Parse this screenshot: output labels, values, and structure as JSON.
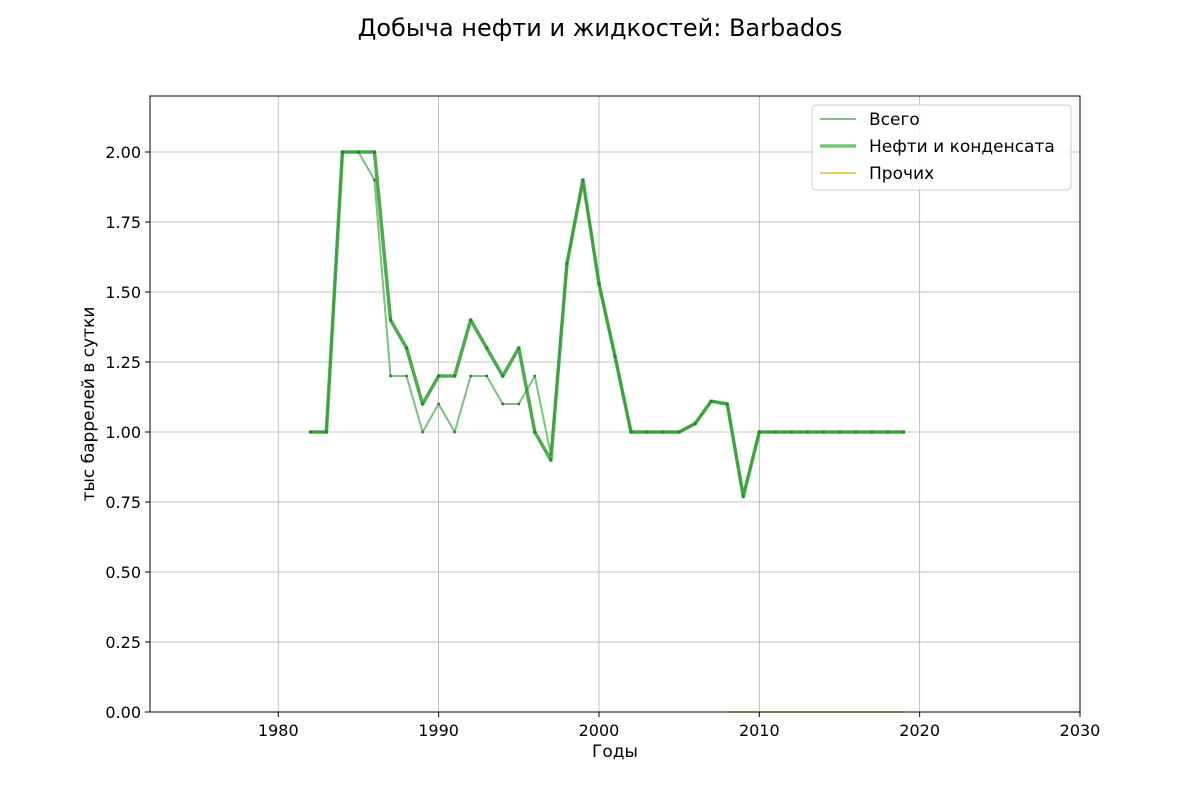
{
  "chart_data": {
    "type": "line",
    "title": "Добыча нефти и жидкостей: Barbados",
    "xlabel": "Годы",
    "ylabel": "тыс баррелей в сутки",
    "xlim": [
      1972,
      2030
    ],
    "ylim": [
      0,
      2.2
    ],
    "xticks": [
      1980,
      1990,
      2000,
      2010,
      2020,
      2030
    ],
    "xtick_labels": [
      "1980",
      "1990",
      "2000",
      "2010",
      "2020",
      "2030"
    ],
    "yticks": [
      0,
      0.25,
      0.5,
      0.75,
      1.0,
      1.25,
      1.5,
      1.75,
      2.0
    ],
    "ytick_labels": [
      "0.00",
      "0.25",
      "0.50",
      "0.75",
      "1.00",
      "1.25",
      "1.50",
      "1.75",
      "2.00"
    ],
    "grid": true,
    "legend_position": "top-right",
    "series": [
      {
        "name": "Всего",
        "color": "#4caf50",
        "x": [
          1982,
          1983,
          1984,
          1985,
          1986,
          1987,
          1988,
          1989,
          1990,
          1991,
          1992,
          1993,
          1994,
          1995,
          1996,
          1997,
          1998,
          1999,
          2000,
          2001,
          2002,
          2003,
          2004,
          2005,
          2006,
          2007,
          2008,
          2009,
          2010,
          2011,
          2012,
          2013,
          2014,
          2015,
          2016,
          2017,
          2018,
          2019
        ],
        "y": [
          1.0,
          1.0,
          2.0,
          2.0,
          1.9,
          1.2,
          1.2,
          1.0,
          1.1,
          1.0,
          1.2,
          1.2,
          1.1,
          1.1,
          1.2,
          0.92,
          1.6,
          1.9,
          1.53,
          1.27,
          1.0,
          1.0,
          1.0,
          1.0,
          1.03,
          1.11,
          1.1,
          0.77,
          1.0,
          1.0,
          1.0,
          1.0,
          1.0,
          1.0,
          1.0,
          1.0,
          1.0,
          1.0
        ]
      },
      {
        "name": "Нефти и конденсата",
        "color": "#2e9e2e",
        "x": [
          1982,
          1983,
          1984,
          1985,
          1986,
          1987,
          1988,
          1989,
          1990,
          1991,
          1992,
          1993,
          1994,
          1995,
          1996,
          1997,
          1998,
          1999,
          2000,
          2001,
          2002,
          2003,
          2004,
          2005,
          2006,
          2007,
          2008,
          2009,
          2010,
          2011,
          2012,
          2013,
          2014,
          2015,
          2016,
          2017,
          2018,
          2019
        ],
        "y": [
          1.0,
          1.0,
          2.0,
          2.0,
          2.0,
          1.4,
          1.3,
          1.1,
          1.2,
          1.2,
          1.4,
          1.3,
          1.2,
          1.3,
          1.0,
          0.9,
          1.6,
          1.9,
          1.53,
          1.27,
          1.0,
          1.0,
          1.0,
          1.0,
          1.03,
          1.11,
          1.1,
          0.77,
          1.0,
          1.0,
          1.0,
          1.0,
          1.0,
          1.0,
          1.0,
          1.0,
          1.0,
          1.0
        ]
      },
      {
        "name": "Прочих",
        "color": "#e0c84a",
        "x": [
          2008,
          2009,
          2010,
          2011,
          2012,
          2013,
          2014,
          2015,
          2016,
          2017,
          2018,
          2019
        ],
        "y": [
          0,
          0,
          0,
          0,
          0,
          0,
          0,
          0,
          0,
          0,
          0,
          0
        ]
      }
    ]
  }
}
